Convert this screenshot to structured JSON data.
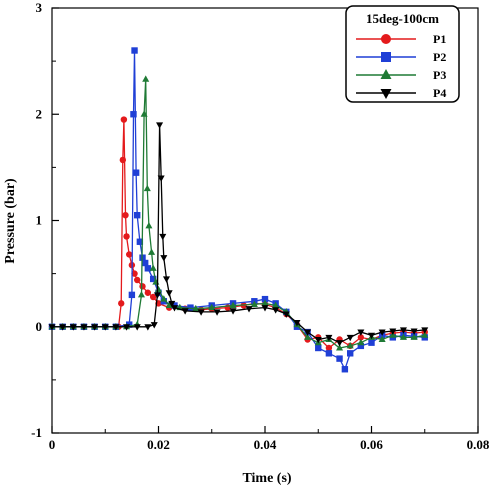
{
  "chart_data": {
    "type": "line",
    "title": "",
    "xlabel": "Time (s)",
    "ylabel": "Pressure (bar)",
    "xlim": [
      0,
      0.08
    ],
    "ylim": [
      -1,
      3
    ],
    "xticks": [
      0,
      0.02,
      0.04,
      0.06,
      0.08
    ],
    "xtick_labels": [
      "0",
      "0.02",
      "0.04",
      "0.06",
      "0.08"
    ],
    "yticks": [
      -1,
      0,
      1,
      2,
      3
    ],
    "ytick_labels": [
      "-1",
      "0",
      "1",
      "2",
      "3"
    ],
    "grid": false,
    "legend": {
      "title": "15deg-100cm",
      "placement": "top-right"
    },
    "series": [
      {
        "name": "P1",
        "color": "#e41a1c",
        "marker": "circle",
        "points": [
          [
            0,
            0
          ],
          [
            0.002,
            0
          ],
          [
            0.004,
            0
          ],
          [
            0.006,
            0
          ],
          [
            0.008,
            0
          ],
          [
            0.01,
            0
          ],
          [
            0.0125,
            0
          ],
          [
            0.013,
            0.22
          ],
          [
            0.0133,
            1.57
          ],
          [
            0.0135,
            1.95
          ],
          [
            0.0138,
            1.05
          ],
          [
            0.014,
            0.85
          ],
          [
            0.0145,
            0.68
          ],
          [
            0.015,
            0.58
          ],
          [
            0.0155,
            0.5
          ],
          [
            0.016,
            0.44
          ],
          [
            0.017,
            0.38
          ],
          [
            0.018,
            0.32
          ],
          [
            0.019,
            0.28
          ],
          [
            0.02,
            0.22
          ],
          [
            0.022,
            0.18
          ],
          [
            0.025,
            0.17
          ],
          [
            0.028,
            0.16
          ],
          [
            0.03,
            0.17
          ],
          [
            0.033,
            0.18
          ],
          [
            0.036,
            0.2
          ],
          [
            0.038,
            0.22
          ],
          [
            0.04,
            0.21
          ],
          [
            0.042,
            0.18
          ],
          [
            0.044,
            0.12
          ],
          [
            0.046,
            0.02
          ],
          [
            0.048,
            -0.12
          ],
          [
            0.05,
            -0.1
          ],
          [
            0.052,
            -0.2
          ],
          [
            0.054,
            -0.12
          ],
          [
            0.056,
            -0.18
          ],
          [
            0.058,
            -0.1
          ],
          [
            0.06,
            -0.12
          ],
          [
            0.062,
            -0.08
          ],
          [
            0.064,
            -0.06
          ],
          [
            0.066,
            -0.05
          ],
          [
            0.068,
            -0.06
          ],
          [
            0.07,
            -0.05
          ]
        ]
      },
      {
        "name": "P2",
        "color": "#1f3fd6",
        "marker": "square",
        "points": [
          [
            0,
            0
          ],
          [
            0.002,
            0
          ],
          [
            0.004,
            0
          ],
          [
            0.006,
            0
          ],
          [
            0.008,
            0
          ],
          [
            0.01,
            0
          ],
          [
            0.012,
            0
          ],
          [
            0.0145,
            0.02
          ],
          [
            0.015,
            0.3
          ],
          [
            0.0153,
            2.0
          ],
          [
            0.0155,
            2.6
          ],
          [
            0.0158,
            1.45
          ],
          [
            0.016,
            1.05
          ],
          [
            0.0165,
            0.8
          ],
          [
            0.017,
            0.65
          ],
          [
            0.0175,
            0.6
          ],
          [
            0.018,
            0.55
          ],
          [
            0.019,
            0.45
          ],
          [
            0.02,
            0.32
          ],
          [
            0.021,
            0.24
          ],
          [
            0.023,
            0.2
          ],
          [
            0.026,
            0.18
          ],
          [
            0.03,
            0.2
          ],
          [
            0.034,
            0.22
          ],
          [
            0.038,
            0.24
          ],
          [
            0.04,
            0.26
          ],
          [
            0.042,
            0.22
          ],
          [
            0.044,
            0.14
          ],
          [
            0.046,
            0.0
          ],
          [
            0.048,
            -0.05
          ],
          [
            0.05,
            -0.2
          ],
          [
            0.052,
            -0.25
          ],
          [
            0.054,
            -0.3
          ],
          [
            0.055,
            -0.4
          ],
          [
            0.056,
            -0.25
          ],
          [
            0.058,
            -0.18
          ],
          [
            0.06,
            -0.15
          ],
          [
            0.062,
            -0.08
          ],
          [
            0.064,
            -0.1
          ],
          [
            0.066,
            -0.08
          ],
          [
            0.068,
            -0.09
          ],
          [
            0.07,
            -0.1
          ]
        ]
      },
      {
        "name": "P3",
        "color": "#1f7a35",
        "marker": "triangle-up",
        "points": [
          [
            0,
            0
          ],
          [
            0.002,
            0
          ],
          [
            0.004,
            0
          ],
          [
            0.006,
            0
          ],
          [
            0.008,
            0
          ],
          [
            0.01,
            0
          ],
          [
            0.012,
            0
          ],
          [
            0.014,
            0
          ],
          [
            0.016,
            0.02
          ],
          [
            0.0168,
            0.3
          ],
          [
            0.0173,
            2.0
          ],
          [
            0.0176,
            2.33
          ],
          [
            0.0179,
            1.3
          ],
          [
            0.0182,
            0.95
          ],
          [
            0.0187,
            0.7
          ],
          [
            0.019,
            0.55
          ],
          [
            0.0195,
            0.42
          ],
          [
            0.02,
            0.35
          ],
          [
            0.021,
            0.26
          ],
          [
            0.022,
            0.2
          ],
          [
            0.024,
            0.18
          ],
          [
            0.027,
            0.17
          ],
          [
            0.03,
            0.18
          ],
          [
            0.034,
            0.2
          ],
          [
            0.038,
            0.21
          ],
          [
            0.04,
            0.22
          ],
          [
            0.042,
            0.2
          ],
          [
            0.044,
            0.14
          ],
          [
            0.046,
            0.02
          ],
          [
            0.048,
            -0.1
          ],
          [
            0.05,
            -0.15
          ],
          [
            0.052,
            -0.12
          ],
          [
            0.054,
            -0.2
          ],
          [
            0.056,
            -0.18
          ],
          [
            0.058,
            -0.15
          ],
          [
            0.06,
            -0.1
          ],
          [
            0.062,
            -0.12
          ],
          [
            0.064,
            -0.08
          ],
          [
            0.066,
            -0.1
          ],
          [
            0.068,
            -0.1
          ],
          [
            0.07,
            -0.08
          ]
        ]
      },
      {
        "name": "P4",
        "color": "#000000",
        "marker": "triangle-down",
        "points": [
          [
            0,
            0
          ],
          [
            0.002,
            0
          ],
          [
            0.004,
            0
          ],
          [
            0.006,
            0
          ],
          [
            0.008,
            0
          ],
          [
            0.01,
            0
          ],
          [
            0.012,
            0
          ],
          [
            0.014,
            0
          ],
          [
            0.016,
            0
          ],
          [
            0.018,
            0
          ],
          [
            0.0192,
            0.02
          ],
          [
            0.0198,
            0.3
          ],
          [
            0.0202,
            1.9
          ],
          [
            0.0205,
            1.4
          ],
          [
            0.0208,
            0.85
          ],
          [
            0.021,
            0.65
          ],
          [
            0.0215,
            0.45
          ],
          [
            0.022,
            0.32
          ],
          [
            0.0225,
            0.22
          ],
          [
            0.023,
            0.18
          ],
          [
            0.025,
            0.15
          ],
          [
            0.028,
            0.14
          ],
          [
            0.031,
            0.14
          ],
          [
            0.034,
            0.15
          ],
          [
            0.037,
            0.17
          ],
          [
            0.04,
            0.18
          ],
          [
            0.042,
            0.16
          ],
          [
            0.044,
            0.12
          ],
          [
            0.046,
            0.04
          ],
          [
            0.048,
            -0.05
          ],
          [
            0.05,
            -0.12
          ],
          [
            0.052,
            -0.1
          ],
          [
            0.054,
            -0.15
          ],
          [
            0.056,
            -0.1
          ],
          [
            0.058,
            -0.05
          ],
          [
            0.06,
            -0.08
          ],
          [
            0.062,
            -0.05
          ],
          [
            0.064,
            -0.04
          ],
          [
            0.066,
            -0.03
          ],
          [
            0.068,
            -0.04
          ],
          [
            0.07,
            -0.03
          ]
        ]
      }
    ]
  }
}
